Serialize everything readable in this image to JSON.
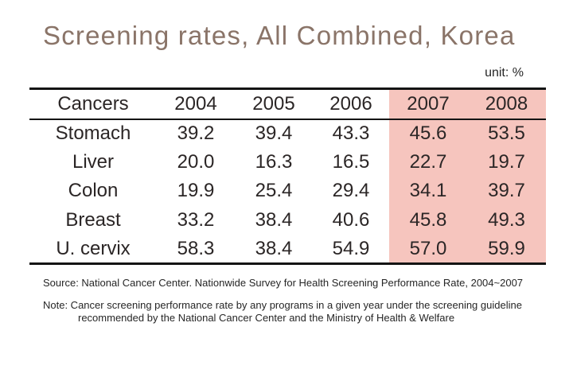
{
  "slide": {
    "title": "Screening rates, All Combined, Korea",
    "unit_label": "unit: %"
  },
  "table": {
    "columns": [
      "Cancers",
      "2004",
      "2005",
      "2006",
      "2007",
      "2008"
    ],
    "highlighted_columns": [
      "2007",
      "2008"
    ],
    "rows": [
      {
        "cancer": "Stomach",
        "values": [
          "39.2",
          "39.4",
          "43.3",
          "45.6",
          "53.5"
        ]
      },
      {
        "cancer": "Liver",
        "values": [
          "20.0",
          "16.3",
          "16.5",
          "22.7",
          "19.7"
        ]
      },
      {
        "cancer": "Colon",
        "values": [
          "19.9",
          "25.4",
          "29.4",
          "34.1",
          "39.7"
        ]
      },
      {
        "cancer": "Breast",
        "values": [
          "33.2",
          "38.4",
          "40.6",
          "45.8",
          "49.3"
        ]
      },
      {
        "cancer": "U. cervix",
        "values": [
          "58.3",
          "38.4",
          "54.9",
          "57.0",
          "59.9"
        ]
      }
    ]
  },
  "footnotes": {
    "source": "Source: National Cancer Center. Nationwide Survey for Health Screening Performance Rate, 2004~2007",
    "note_line1": "Note: Cancer screening performance rate by any programs in a given year under the screening guideline",
    "note_line2": "recommended by the National Cancer Center and the Ministry of Health & Welfare"
  },
  "colors": {
    "highlight": "#f6c5be",
    "title": "#8a7468",
    "rule": "#141414"
  },
  "chart_data": {
    "type": "table",
    "title": "Screening rates, All Combined, Korea",
    "unit": "%",
    "categories": [
      "2004",
      "2005",
      "2006",
      "2007",
      "2008"
    ],
    "series": [
      {
        "name": "Stomach",
        "values": [
          39.2,
          39.4,
          43.3,
          45.6,
          53.5
        ]
      },
      {
        "name": "Liver",
        "values": [
          20.0,
          16.3,
          16.5,
          22.7,
          19.7
        ]
      },
      {
        "name": "Colon",
        "values": [
          19.9,
          25.4,
          29.4,
          34.1,
          39.7
        ]
      },
      {
        "name": "Breast",
        "values": [
          33.2,
          38.4,
          40.6,
          45.8,
          49.3
        ]
      },
      {
        "name": "U. cervix",
        "values": [
          58.3,
          38.4,
          54.9,
          57.0,
          59.9
        ]
      }
    ],
    "highlighted_categories": [
      "2007",
      "2008"
    ],
    "notes": "Highlighted columns 2007 and 2008 shaded pink"
  }
}
